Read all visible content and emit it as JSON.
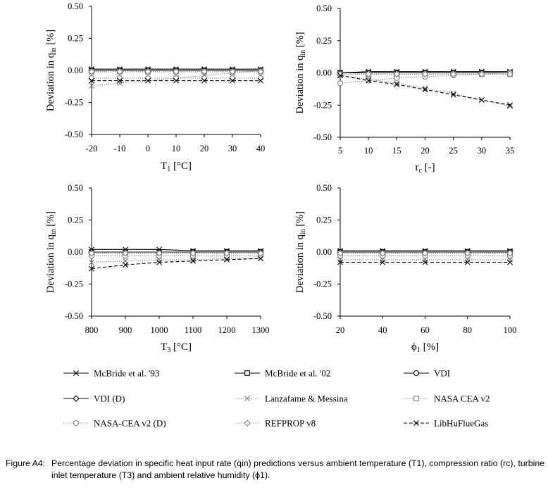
{
  "figure": {
    "caption_label": "Figure A4:",
    "caption_text": "Percentage deviation in specific heat input rate (q̇in) predictions versus ambient temperature (T1), compression ratio (rc), turbine inlet temperature (T3) and ambient relative humidity (ϕ1)."
  },
  "legend": [
    {
      "name": "McBride et al. '93",
      "marker": "x",
      "dash": "solid",
      "color": "#000000"
    },
    {
      "name": "McBride et al. '02",
      "marker": "square",
      "dash": "solid",
      "color": "#000000"
    },
    {
      "name": "VDI",
      "marker": "circle",
      "dash": "solid",
      "color": "#000000"
    },
    {
      "name": "VDI (D)",
      "marker": "diamond",
      "dash": "solid",
      "color": "#000000"
    },
    {
      "name": "Lanzafame & Messina",
      "marker": "x",
      "dash": "dotted",
      "color": "#7f7f7f"
    },
    {
      "name": "NASA CEA v2",
      "marker": "square",
      "dash": "dotted",
      "color": "#7f7f7f"
    },
    {
      "name": "NASA-CEA v2 (D)",
      "marker": "circle",
      "dash": "dotted",
      "color": "#7f7f7f"
    },
    {
      "name": "REFPROP v8",
      "marker": "diamond",
      "dash": "dotted",
      "color": "#7f7f7f"
    },
    {
      "name": "LibHuFlueGas",
      "marker": "x",
      "dash": "dashed",
      "color": "#000000"
    }
  ],
  "chart_data": [
    {
      "type": "line",
      "xlabel": "T",
      "xlabel_sub": "1",
      "xlabel_unit": " [°C]",
      "ylabel": "Deviation in q",
      "ylabel_sub": "in",
      "ylabel_unit": " [%]",
      "xlim": [
        -20,
        40
      ],
      "ylim": [
        -0.5,
        0.5
      ],
      "xticks": [
        "-20",
        "-10",
        "0",
        "10",
        "20",
        "30",
        "40"
      ],
      "yticks": [
        "0.50",
        "0.25",
        "0.00",
        "-0.25",
        "-0.50"
      ],
      "x": [
        -20,
        -10,
        0,
        10,
        20,
        30,
        40
      ],
      "series": [
        {
          "name": "McBride et al. '93",
          "values": [
            0.01,
            0.01,
            0.01,
            0.01,
            0.01,
            0.01,
            0.01
          ]
        },
        {
          "name": "McBride et al. '02",
          "values": [
            0.0,
            0.0,
            0.0,
            0.0,
            0.0,
            0.0,
            0.0
          ]
        },
        {
          "name": "VDI",
          "values": [
            0.0,
            0.0,
            0.0,
            0.0,
            0.0,
            0.0,
            0.0
          ]
        },
        {
          "name": "VDI (D)",
          "values": [
            0.0,
            0.0,
            0.0,
            0.0,
            0.0,
            0.0,
            0.0
          ]
        },
        {
          "name": "Lanzafame & Messina",
          "values": [
            -0.12,
            -0.1,
            -0.08,
            -0.06,
            -0.04,
            -0.02,
            0.0
          ]
        },
        {
          "name": "NASA CEA v2",
          "values": [
            -0.01,
            -0.01,
            -0.01,
            -0.01,
            -0.01,
            -0.01,
            -0.01
          ]
        },
        {
          "name": "NASA-CEA v2 (D)",
          "values": [
            -0.06,
            -0.06,
            -0.06,
            -0.06,
            -0.06,
            -0.06,
            -0.06
          ]
        },
        {
          "name": "REFPROP v8",
          "values": [
            -0.01,
            -0.01,
            -0.01,
            -0.01,
            -0.01,
            -0.01,
            -0.01
          ]
        },
        {
          "name": "LibHuFlueGas",
          "values": [
            -0.08,
            -0.08,
            -0.08,
            -0.08,
            -0.08,
            -0.08,
            -0.08
          ]
        }
      ]
    },
    {
      "type": "line",
      "xlabel": "r",
      "xlabel_sub": "c",
      "xlabel_unit": " [-]",
      "ylabel": "Deviation in q",
      "ylabel_sub": "in",
      "ylabel_unit": " [%]",
      "xlim": [
        5,
        35
      ],
      "ylim": [
        -0.5,
        0.5
      ],
      "xticks": [
        "5",
        "10",
        "15",
        "20",
        "25",
        "30",
        "35"
      ],
      "yticks": [
        "0.50",
        "0.25",
        "0.00",
        "-0.25",
        "-0.50"
      ],
      "x": [
        5,
        10,
        15,
        20,
        25,
        30,
        35
      ],
      "series": [
        {
          "name": "McBride et al. '93",
          "values": [
            0.0,
            0.01,
            0.01,
            0.01,
            0.01,
            0.01,
            0.01
          ]
        },
        {
          "name": "McBride et al. '02",
          "values": [
            0.0,
            0.0,
            0.0,
            0.0,
            0.0,
            0.0,
            0.0
          ]
        },
        {
          "name": "VDI",
          "values": [
            0.0,
            0.0,
            0.0,
            0.0,
            0.0,
            0.0,
            0.0
          ]
        },
        {
          "name": "VDI (D)",
          "values": [
            0.0,
            0.0,
            0.0,
            0.0,
            0.0,
            0.0,
            0.0
          ]
        },
        {
          "name": "Lanzafame & Messina",
          "values": [
            -0.02,
            -0.05,
            -0.08,
            -0.12,
            -0.16,
            -0.21,
            -0.26
          ]
        },
        {
          "name": "NASA CEA v2",
          "values": [
            -0.01,
            -0.01,
            -0.01,
            -0.01,
            -0.01,
            -0.01,
            -0.01
          ]
        },
        {
          "name": "NASA-CEA v2 (D)",
          "values": [
            -0.08,
            -0.06,
            -0.04,
            -0.03,
            -0.02,
            -0.01,
            0.0
          ]
        },
        {
          "name": "REFPROP v8",
          "values": [
            -0.01,
            -0.01,
            -0.01,
            -0.01,
            -0.01,
            -0.01,
            -0.01
          ]
        },
        {
          "name": "LibHuFlueGas",
          "values": [
            -0.02,
            -0.06,
            -0.09,
            -0.13,
            -0.17,
            -0.21,
            -0.25
          ]
        }
      ]
    },
    {
      "type": "line",
      "xlabel": "T",
      "xlabel_sub": "3",
      "xlabel_unit": " [°C]",
      "ylabel": "Deviation in q",
      "ylabel_sub": "in",
      "ylabel_unit": " [%]",
      "xlim": [
        800,
        1300
      ],
      "ylim": [
        -0.5,
        0.5
      ],
      "xticks": [
        "800",
        "900",
        "1000",
        "1100",
        "1200",
        "1300"
      ],
      "yticks": [
        "0.50",
        "0.25",
        "0.00",
        "-0.25",
        "-0.50"
      ],
      "x": [
        800,
        900,
        1000,
        1100,
        1200,
        1300
      ],
      "series": [
        {
          "name": "McBride et al. '93",
          "values": [
            0.02,
            0.02,
            0.02,
            0.01,
            0.01,
            0.01
          ]
        },
        {
          "name": "McBride et al. '02",
          "values": [
            0.0,
            0.0,
            0.0,
            0.0,
            0.0,
            0.0
          ]
        },
        {
          "name": "VDI",
          "values": [
            0.0,
            0.0,
            0.0,
            0.0,
            0.0,
            0.0
          ]
        },
        {
          "name": "VDI (D)",
          "values": [
            0.0,
            0.0,
            0.0,
            0.0,
            0.0,
            0.0
          ]
        },
        {
          "name": "Lanzafame & Messina",
          "values": [
            -0.08,
            -0.07,
            -0.06,
            -0.06,
            -0.05,
            -0.05
          ]
        },
        {
          "name": "NASA CEA v2",
          "values": [
            -0.01,
            -0.01,
            -0.01,
            -0.01,
            -0.01,
            -0.01
          ]
        },
        {
          "name": "NASA-CEA v2 (D)",
          "values": [
            -0.03,
            -0.03,
            -0.03,
            -0.03,
            -0.03,
            -0.03
          ]
        },
        {
          "name": "REFPROP v8",
          "values": [
            -0.01,
            -0.01,
            -0.01,
            -0.01,
            -0.01,
            -0.01
          ]
        },
        {
          "name": "LibHuFlueGas",
          "values": [
            -0.13,
            -0.1,
            -0.08,
            -0.07,
            -0.06,
            -0.05
          ]
        }
      ]
    },
    {
      "type": "line",
      "xlabel": "ϕ",
      "xlabel_sub": "1",
      "xlabel_unit": " [%]",
      "ylabel": "Deviation in q",
      "ylabel_sub": "in",
      "ylabel_unit": " [%]",
      "xlim": [
        20,
        100
      ],
      "ylim": [
        -0.5,
        0.5
      ],
      "xticks": [
        "20",
        "40",
        "60",
        "80",
        "100"
      ],
      "yticks": [
        "0.50",
        "0.25",
        "0.00",
        "-0.25",
        "-0.50"
      ],
      "x": [
        20,
        40,
        60,
        80,
        100
      ],
      "series": [
        {
          "name": "McBride et al. '93",
          "values": [
            0.01,
            0.01,
            0.01,
            0.01,
            0.01
          ]
        },
        {
          "name": "McBride et al. '02",
          "values": [
            0.0,
            0.0,
            0.0,
            0.0,
            0.0
          ]
        },
        {
          "name": "VDI",
          "values": [
            0.0,
            0.0,
            0.0,
            0.0,
            0.0
          ]
        },
        {
          "name": "VDI (D)",
          "values": [
            0.0,
            0.0,
            0.0,
            0.0,
            0.0
          ]
        },
        {
          "name": "Lanzafame & Messina",
          "values": [
            -0.06,
            -0.06,
            -0.06,
            -0.06,
            -0.06
          ]
        },
        {
          "name": "NASA CEA v2",
          "values": [
            -0.01,
            -0.01,
            -0.01,
            -0.01,
            -0.01
          ]
        },
        {
          "name": "NASA-CEA v2 (D)",
          "values": [
            -0.03,
            -0.03,
            -0.03,
            -0.03,
            -0.03
          ]
        },
        {
          "name": "REFPROP v8",
          "values": [
            -0.01,
            -0.01,
            -0.01,
            -0.01,
            -0.01
          ]
        },
        {
          "name": "LibHuFlueGas",
          "values": [
            -0.08,
            -0.08,
            -0.08,
            -0.08,
            -0.08
          ]
        }
      ]
    }
  ]
}
